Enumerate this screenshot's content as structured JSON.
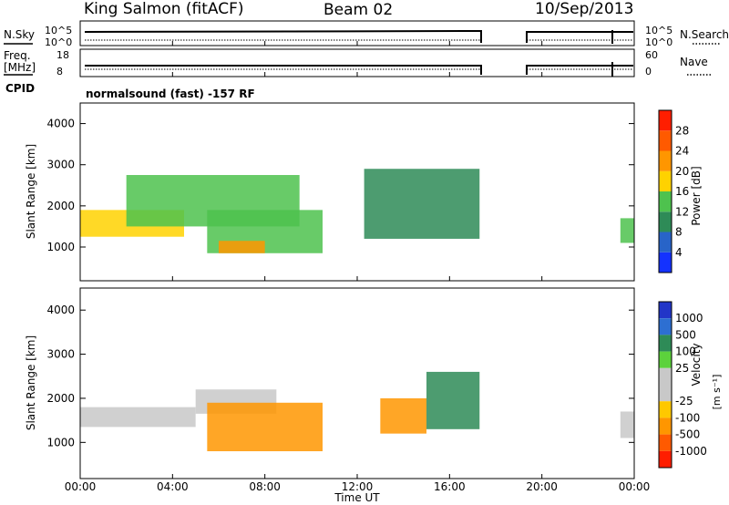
{
  "header": {
    "station": "King Salmon (fitACF)",
    "beam": "Beam 02",
    "date": "10/Sep/2013"
  },
  "strip_labels": {
    "nsky": "N.Sky",
    "nsky_ticks": [
      "10^5",
      "10^0"
    ],
    "nsearch": "N.Search",
    "nsearch_ticks": [
      "10^5",
      "10^0"
    ],
    "freq_line1": "Freq.",
    "freq_line2": "[MHz]",
    "freq_ticks": [
      "18",
      "8"
    ],
    "nave": "Nave",
    "nave_ticks": [
      "60",
      "0"
    ],
    "cpid": "CPID",
    "cpid_text": "normalsound (fast) -157 RF"
  },
  "axes": {
    "ylabel": "Slant Range [km]",
    "xlabel": "Time UT",
    "yticks": [
      "1000",
      "2000",
      "3000",
      "4000"
    ],
    "xticks": [
      "00:00",
      "04:00",
      "08:00",
      "12:00",
      "16:00",
      "20:00",
      "00:00"
    ]
  },
  "colorbars": {
    "power": {
      "label": "Power [dB]",
      "ticks": [
        "4",
        "8",
        "12",
        "16",
        "20",
        "24",
        "28"
      ],
      "colors": [
        "#1432ff",
        "#2864c8",
        "#2e8b57",
        "#4ec24e",
        "#ffd200",
        "#ff9600",
        "#ff5a00",
        "#ff1e00"
      ]
    },
    "velocity": {
      "label_main": "Velocity",
      "label_units": "[m s⁻¹]",
      "ticks": [
        "1000",
        "500",
        "100",
        "25",
        "-25",
        "-100",
        "-500",
        "-1000"
      ],
      "colors": [
        "#2236c8",
        "#2d6fd2",
        "#2e8b57",
        "#5cd23c",
        "#c8c8c8",
        "#c8c8c8",
        "#ffc800",
        "#ff9600",
        "#ff5a00",
        "#ff1e00"
      ]
    }
  },
  "chart_data": [
    {
      "type": "heatmap",
      "title": "Power",
      "xlabel": "Time UT",
      "ylabel": "Slant Range [km]",
      "xlim_hours": [
        0,
        24
      ],
      "ylim_km": [
        180,
        4500
      ],
      "colorbar": "Power [dB]",
      "regions": [
        {
          "t0": 0.0,
          "t1": 4.5,
          "r0": 1250,
          "r1": 1900,
          "value_db": 18
        },
        {
          "t0": 2.0,
          "t1": 9.5,
          "r0": 1500,
          "r1": 2750,
          "value_db": 12
        },
        {
          "t0": 5.5,
          "t1": 10.5,
          "r0": 850,
          "r1": 1900,
          "value_db": 14
        },
        {
          "t0": 6.0,
          "t1": 8.0,
          "r0": 850,
          "r1": 1150,
          "value_db": 22
        },
        {
          "t0": 12.3,
          "t1": 17.3,
          "r0": 1200,
          "r1": 2900,
          "value_db": 8
        },
        {
          "t0": 23.4,
          "t1": 24.0,
          "r0": 1100,
          "r1": 1700,
          "value_db": 12
        }
      ]
    },
    {
      "type": "heatmap",
      "title": "Velocity",
      "xlabel": "Time UT",
      "ylabel": "Slant Range [km]",
      "xlim_hours": [
        0,
        24
      ],
      "ylim_km": [
        180,
        4500
      ],
      "colorbar": "Velocity [m s^-1]",
      "regions": [
        {
          "t0": 0.0,
          "t1": 5.0,
          "r0": 1350,
          "r1": 1800,
          "value_ms": 0
        },
        {
          "t0": 5.0,
          "t1": 8.5,
          "r0": 1650,
          "r1": 2200,
          "value_ms": 0
        },
        {
          "t0": 5.5,
          "t1": 10.5,
          "r0": 800,
          "r1": 1900,
          "value_ms": -150
        },
        {
          "t0": 13.0,
          "t1": 15.0,
          "r0": 1200,
          "r1": 2000,
          "value_ms": -300
        },
        {
          "t0": 15.0,
          "t1": 17.3,
          "r0": 1300,
          "r1": 2600,
          "value_ms": 200
        },
        {
          "t0": 23.4,
          "t1": 24.0,
          "r0": 1100,
          "r1": 1700,
          "value_ms": 0
        }
      ]
    }
  ]
}
